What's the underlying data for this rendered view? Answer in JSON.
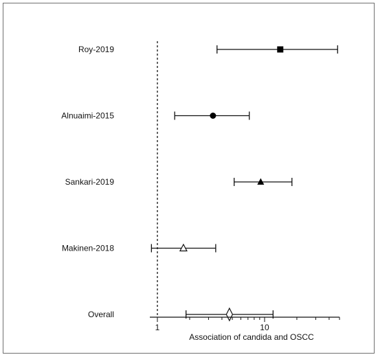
{
  "chart_data": {
    "type": "forest",
    "xscale": "log",
    "xlim": [
      0.85,
      50
    ],
    "xlabel": "Association of candida and OSCC",
    "xticks": [
      {
        "value": 1,
        "label": "1"
      },
      {
        "value": 10,
        "label": "10"
      }
    ],
    "reference_line": 1,
    "studies": [
      {
        "label": "Roy-2019",
        "estimate": 14.0,
        "lower": 3.6,
        "upper": 48.0,
        "marker": "square-filled"
      },
      {
        "label": "Alnuaimi-2015",
        "estimate": 3.3,
        "lower": 1.45,
        "upper": 7.2,
        "marker": "circle-filled"
      },
      {
        "label": "Sankari-2019",
        "estimate": 9.2,
        "lower": 5.2,
        "upper": 18.0,
        "marker": "triangle-filled"
      },
      {
        "label": "Makinen-2018",
        "estimate": 1.75,
        "lower": 0.88,
        "upper": 3.5,
        "marker": "triangle-open"
      },
      {
        "label": "Overall",
        "estimate": 4.7,
        "lower": 1.85,
        "upper": 12.0,
        "marker": "diamond-open"
      }
    ]
  }
}
